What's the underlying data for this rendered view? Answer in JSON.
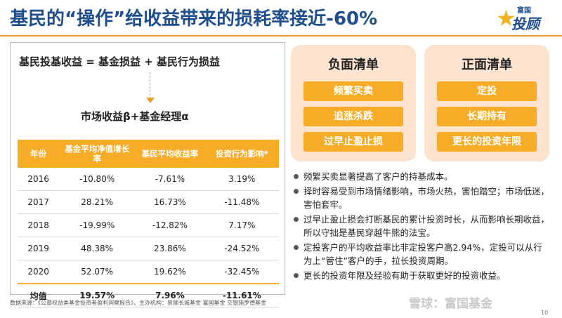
{
  "title": "基民的“操作”给收益带来的损耗率接近-60%",
  "logo": {
    "line1": "富国",
    "line2": "投顾",
    "star": "★"
  },
  "formula1": "基民投基收益 = 基金损益 + 基民行为损益",
  "formula2": "市场收益β+基金经理α",
  "table": {
    "headers": [
      "年份",
      "基金平均净值增长率",
      "基民平均收益率",
      "投资行为影响*"
    ],
    "rows": [
      {
        "year": "2016",
        "nav": "-10.80%",
        "investor": "-7.61%",
        "effect": "3.19%"
      },
      {
        "year": "2017",
        "nav": "28.21%",
        "investor": "16.73%",
        "effect": "-11.48%"
      },
      {
        "year": "2018",
        "nav": "-19.99%",
        "investor": "-12.82%",
        "effect": "7.17%"
      },
      {
        "year": "2019",
        "nav": "48.38%",
        "investor": "23.86%",
        "effect": "-24.52%"
      },
      {
        "year": "2020",
        "nav": "52.07%",
        "investor": "19.62%",
        "effect": "-32.45%"
      }
    ],
    "avg": {
      "year": "均值",
      "nav": "19.57%",
      "investor": "7.96%",
      "effect": "-11.61%"
    }
  },
  "negative": {
    "title": "负面清单",
    "items": [
      "频繁买卖",
      "追涨杀跌",
      "过早止盈止损"
    ]
  },
  "positive": {
    "title": "正面清单",
    "items": [
      "定投",
      "长期持有",
      "更长的投资年限"
    ]
  },
  "bullets": [
    "频繁买卖显著提高了客户的持基成本。",
    "择时容易受到市场情绪影响，市场火热，害怕踏空；市场低迷，害怕套牢。",
    "过早止盈止损会打断基民的累计投资时长，从而影响长期收益，所以守拙是基民穿越牛熊的法宝。",
    "定投客户的平均收益率比非定投客户高2.94%，定投可以从行为上“管住”客户的手，拉长投资周期。",
    "更长的投资年限及经验有助于获取更好的投资收益。"
  ],
  "source": "数据来源：《公募权益类基金投资者盈利洞察报告》，主办机构：景顺长城基金 富国基金 交银施罗德基金",
  "watermark": "雪球：富国基金",
  "page_number": "10",
  "colors": {
    "accent": "#f6ac27",
    "title": "#1f4e8c",
    "card": "#fbe3cf"
  }
}
